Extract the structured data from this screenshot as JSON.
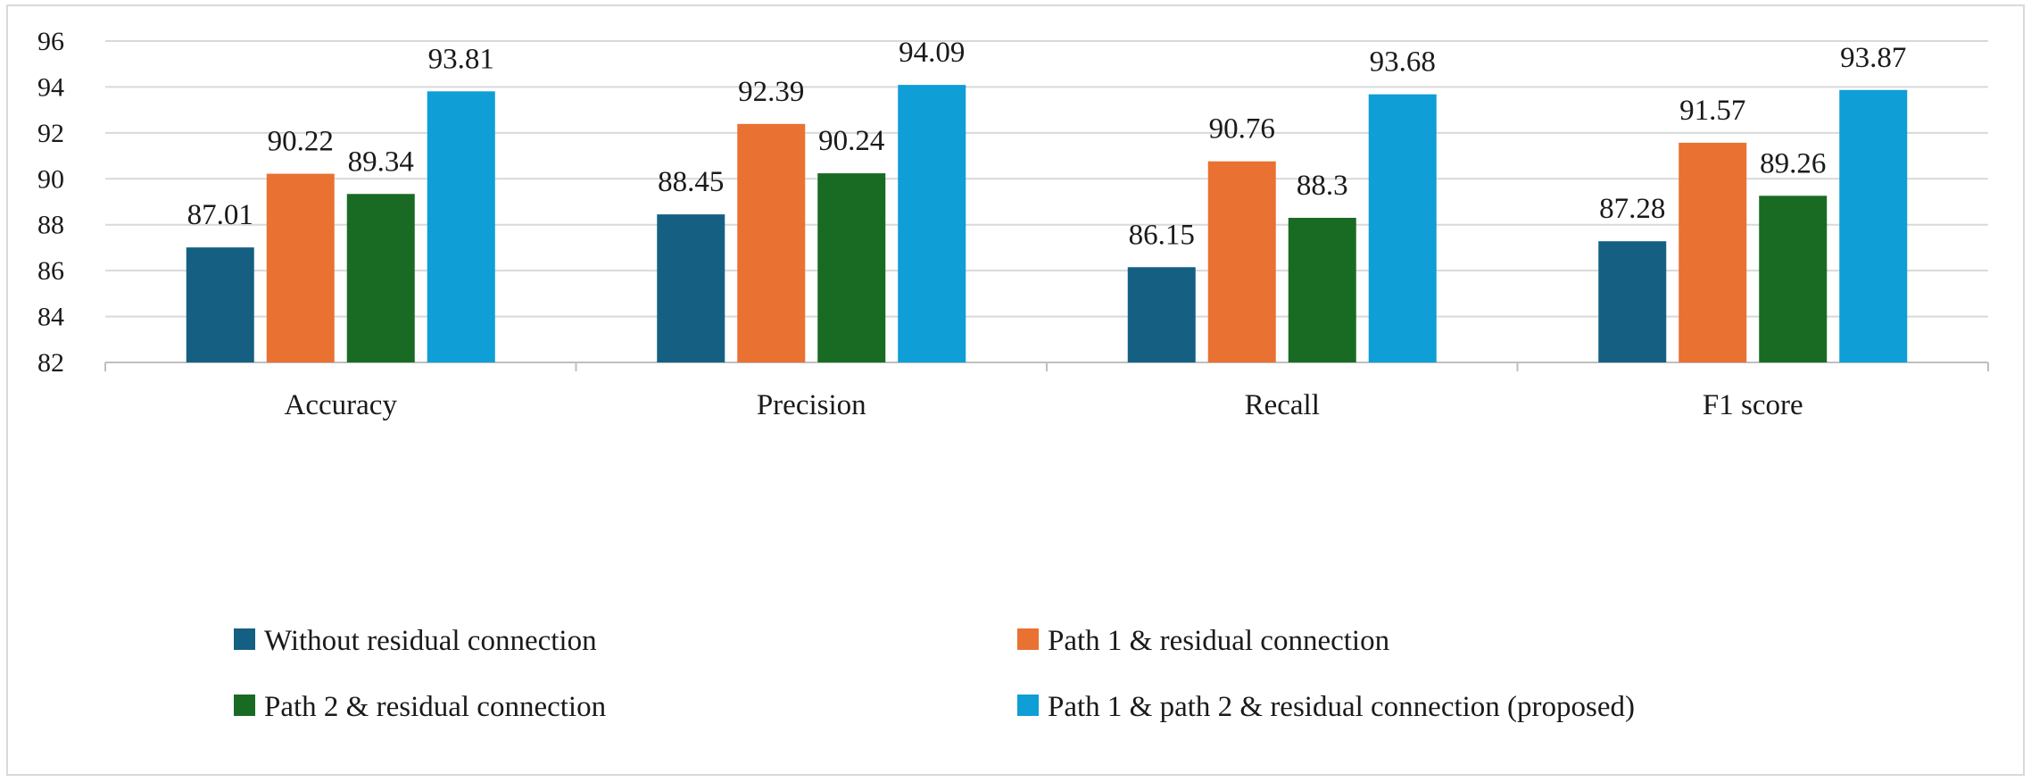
{
  "chart_data": {
    "type": "bar",
    "title": "",
    "xlabel": "",
    "ylabel": "",
    "categories": [
      "Accuracy",
      "Precision",
      "Recall",
      "F1 score"
    ],
    "ylim": [
      82,
      96
    ],
    "yticks": [
      82,
      84,
      86,
      88,
      90,
      92,
      94,
      96
    ],
    "grid": true,
    "legend_position": "bottom",
    "series": [
      {
        "name": "Without residual connection",
        "color": "#156082",
        "values": [
          87.01,
          88.45,
          86.15,
          87.28
        ]
      },
      {
        "name": "Path 1 & residual connection",
        "color": "#E97132",
        "values": [
          90.22,
          92.39,
          90.76,
          91.57
        ]
      },
      {
        "name": "Path 2 & residual connection",
        "color": "#196B24",
        "values": [
          89.34,
          90.24,
          88.3,
          89.26
        ]
      },
      {
        "name": "Path 1 & path 2 & residual connection (proposed)",
        "color": "#0F9ED5",
        "values": [
          93.81,
          94.09,
          93.68,
          93.87
        ]
      }
    ]
  }
}
